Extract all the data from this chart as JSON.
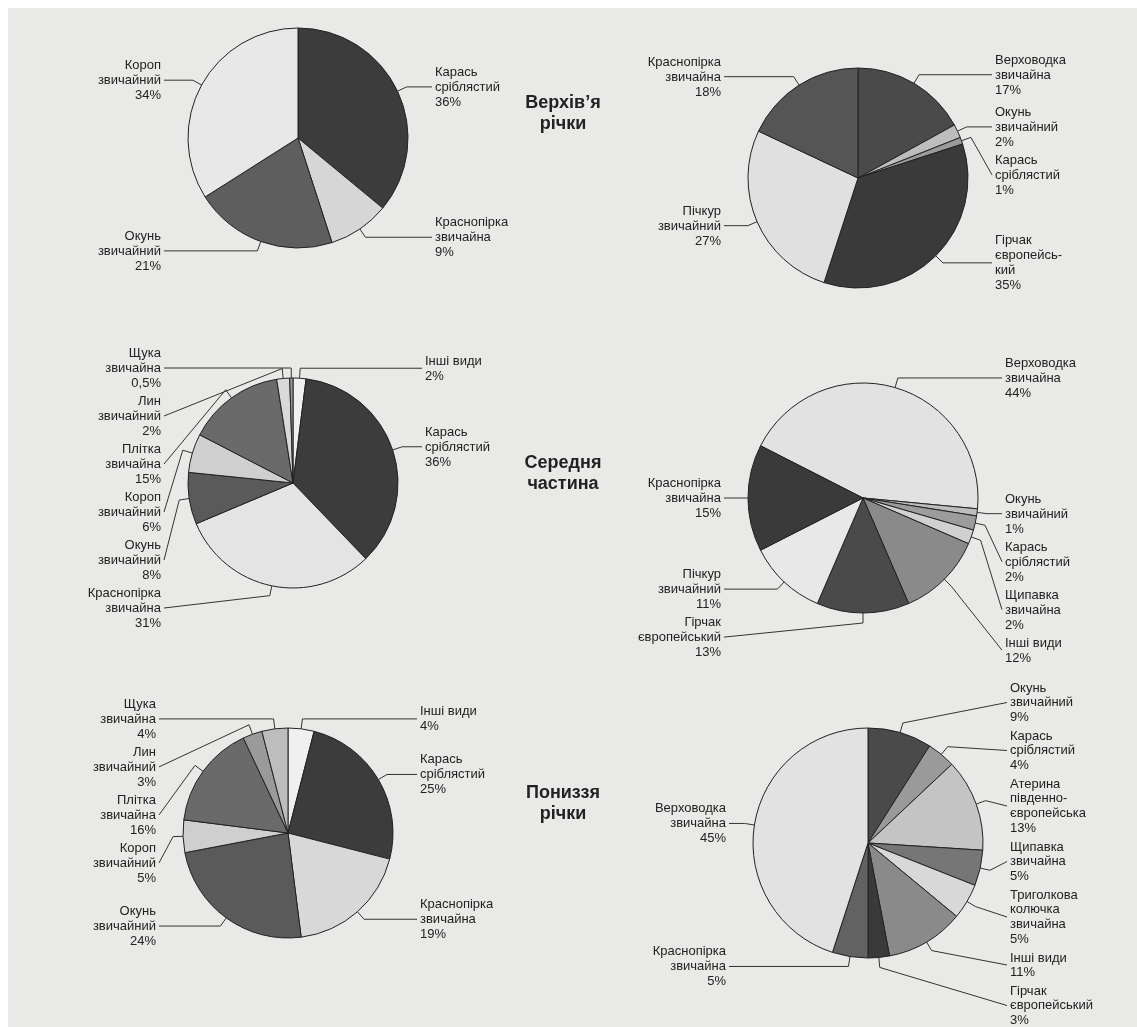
{
  "chart_data": [
    {
      "type": "pie",
      "title": "Верхів’я\nрічки",
      "categories": [
        "Карась\nсріблястий",
        "Краснопірка\nзвичайна",
        "Окунь\nзвичайний",
        "Короп\nзвичайний"
      ],
      "values": [
        36,
        9,
        21,
        34
      ],
      "value_labels": [
        "36%",
        "9%",
        "21%",
        "34%"
      ],
      "colors": [
        "#3c3c3c",
        "#d6d6d6",
        "#5e5e5e",
        "#e8e8e8"
      ]
    },
    {
      "type": "pie",
      "categories": [
        "Верховодка\nзвичайна",
        "Окунь\nзвичайний",
        "Карась\nсріблястий",
        "Гірчак\nєвропейсь-\nкий",
        "Пічкур\nзвичайний",
        "Краснопірка\nзвичайна"
      ],
      "values": [
        17,
        2,
        1,
        35,
        27,
        18
      ],
      "value_labels": [
        "17%",
        "2%",
        "1%",
        "35%",
        "27%",
        "18%"
      ],
      "colors": [
        "#4a4a4a",
        "#bdbdbd",
        "#9a9a9a",
        "#3a3a3a",
        "#e0e0e0",
        "#555555"
      ]
    },
    {
      "type": "pie",
      "title": "Середня\nчастина",
      "categories": [
        "Інші види",
        "Карась\nсріблястий",
        "Краснопірка\nзвичайна",
        "Окунь\nзвичайний",
        "Короп\nзвичайний",
        "Плітка\nзвичайна",
        "Лин\nзвичайний",
        "Щука\nзвичайна"
      ],
      "values": [
        2,
        36,
        31,
        8,
        6,
        15,
        2,
        0.5
      ],
      "value_labels": [
        "2%",
        "36%",
        "31%",
        "8%",
        "6%",
        "15%",
        "2%",
        "0,5%"
      ],
      "colors": [
        "#f0f0f0",
        "#3c3c3c",
        "#e4e4e4",
        "#5a5a5a",
        "#cfcfcf",
        "#6a6a6a",
        "#d9d9d9",
        "#9a9a9a"
      ]
    },
    {
      "type": "pie",
      "categories": [
        "Верховодка\nзвичайна",
        "Окунь\nзвичайний",
        "Карась\nсріблястий",
        "Щипавка\nзвичайна",
        "Інші види",
        "Гірчак\nєвропейський",
        "Пічкур\nзвичайний",
        "Краснопірка\nзвичайна"
      ],
      "values": [
        44,
        1,
        2,
        2,
        12,
        13,
        11,
        15
      ],
      "value_labels": [
        "44%",
        "1%",
        "2%",
        "2%",
        "12%",
        "13%",
        "11%",
        "15%"
      ],
      "colors": [
        "#e2e2e2",
        "#bcbcbc",
        "#9c9c9c",
        "#d0d0d0",
        "#8a8a8a",
        "#4a4a4a",
        "#e8e8e8",
        "#3a3a3a"
      ]
    },
    {
      "type": "pie",
      "title": "Пониззя\nрічки",
      "categories": [
        "Інші види",
        "Карась\nсріблястий",
        "Краснопірка\nзвичайна",
        "Окунь\nзвичайний",
        "Короп\nзвичайний",
        "Плітка\nзвичайна",
        "Лин\nзвичайний",
        "Щука\nзвичайна"
      ],
      "values": [
        4,
        25,
        19,
        24,
        5,
        16,
        3,
        4
      ],
      "value_labels": [
        "4%",
        "25%",
        "19%",
        "24%",
        "5%",
        "16%",
        "3%",
        "4%"
      ],
      "colors": [
        "#f0f0f0",
        "#3c3c3c",
        "#d8d8d8",
        "#5a5a5a",
        "#cfcfcf",
        "#6a6a6a",
        "#9a9a9a",
        "#bdbdbd"
      ]
    },
    {
      "type": "pie",
      "categories": [
        "Окунь\nзвичайний",
        "Карась\nсріблястий",
        "Атерина\nпівденно-\nєвропейська",
        "Щипавка\nзвичайна",
        "Триголкова\nколючка\nзвичайна",
        "Інші види",
        "Гірчак\nєвропейський",
        "Краснопірка\nзвичайна",
        "Верховодка\nзвичайна"
      ],
      "values": [
        9,
        4,
        13,
        5,
        5,
        11,
        3,
        5,
        45
      ],
      "value_labels": [
        "9%",
        "4%",
        "13%",
        "5%",
        "5%",
        "11%",
        "3%",
        "5%",
        "45%"
      ],
      "colors": [
        "#4a4a4a",
        "#9a9a9a",
        "#c4c4c4",
        "#767676",
        "#d8d8d8",
        "#8a8a8a",
        "#3a3a3a",
        "#626262",
        "#e2e2e2"
      ]
    }
  ]
}
